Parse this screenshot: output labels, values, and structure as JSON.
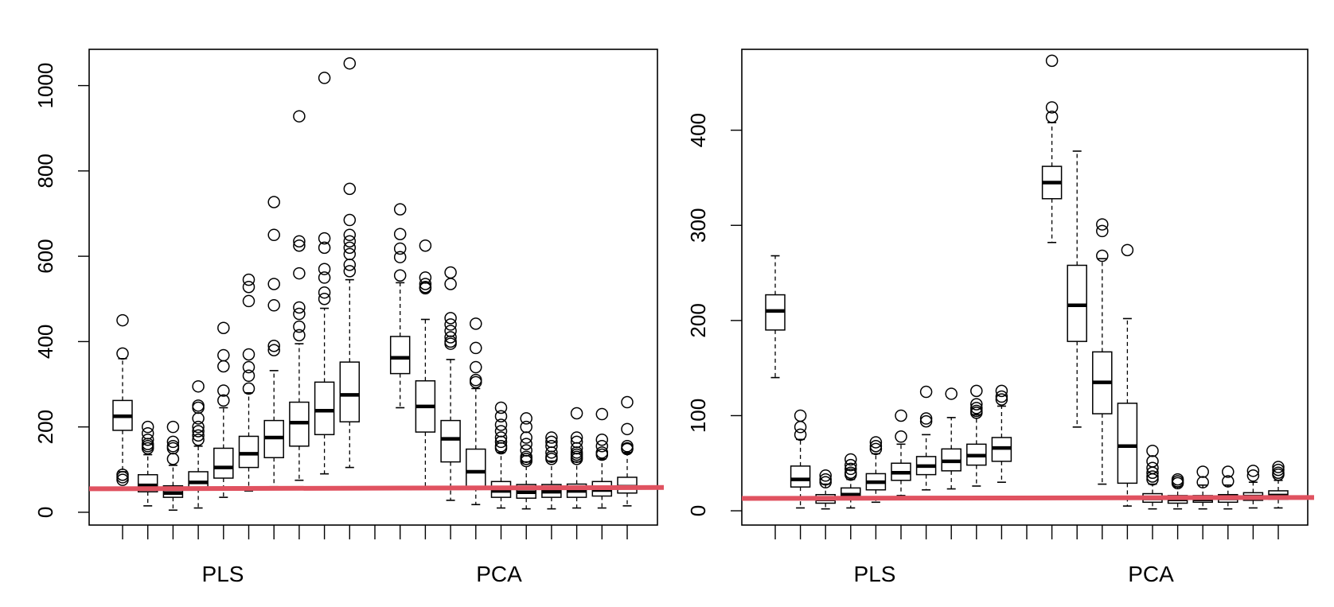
{
  "chart_data": [
    {
      "type": "box",
      "title": "",
      "xlabel": "",
      "ylabel": "",
      "ylim": [
        -30,
        1085
      ],
      "yticks": [
        0,
        200,
        400,
        600,
        800,
        1000
      ],
      "group_labels": [
        "PLS",
        "PCA"
      ],
      "reference_line": {
        "y_start": 55,
        "y_end": 58,
        "color": "#e05260"
      },
      "boxes": [
        {
          "group": "PLS",
          "q1": 192,
          "median": 225,
          "q3": 262,
          "whisker_low": 95,
          "whisker_high": 360,
          "outliers": [
            450,
            372,
            88,
            82,
            76
          ]
        },
        {
          "group": "PLS",
          "q1": 48,
          "median": 63,
          "q3": 88,
          "whisker_low": 15,
          "whisker_high": 135,
          "outliers": [
            200,
            185,
            170,
            160,
            155,
            150
          ]
        },
        {
          "group": "PLS",
          "q1": 35,
          "median": 45,
          "q3": 62,
          "whisker_low": 5,
          "whisker_high": 110,
          "outliers": [
            200,
            165,
            155,
            150,
            125
          ]
        },
        {
          "group": "PLS",
          "q1": 55,
          "median": 70,
          "q3": 95,
          "whisker_low": 10,
          "whisker_high": 155,
          "outliers": [
            295,
            250,
            245,
            220,
            200,
            190,
            180,
            170
          ]
        },
        {
          "group": "PLS",
          "q1": 80,
          "median": 105,
          "q3": 150,
          "whisker_low": 35,
          "whisker_high": 245,
          "outliers": [
            432,
            368,
            342,
            285,
            262
          ]
        },
        {
          "group": "PLS",
          "q1": 105,
          "median": 137,
          "q3": 178,
          "whisker_low": 50,
          "whisker_high": 280,
          "outliers": [
            545,
            528,
            495,
            370,
            340,
            320,
            290
          ]
        },
        {
          "group": "PLS",
          "q1": 128,
          "median": 175,
          "q3": 215,
          "whisker_low": 60,
          "whisker_high": 332,
          "outliers": [
            727,
            650,
            535,
            485,
            390,
            380
          ]
        },
        {
          "group": "PLS",
          "q1": 155,
          "median": 210,
          "q3": 258,
          "whisker_low": 75,
          "whisker_high": 395,
          "outliers": [
            928,
            635,
            625,
            560,
            480,
            465,
            435,
            415
          ]
        },
        {
          "group": "PLS",
          "q1": 182,
          "median": 238,
          "q3": 305,
          "whisker_low": 90,
          "whisker_high": 478,
          "outliers": [
            1018,
            642,
            620,
            570,
            550,
            515,
            500
          ]
        },
        {
          "group": "PLS",
          "q1": 212,
          "median": 275,
          "q3": 352,
          "whisker_low": 105,
          "whisker_high": 545,
          "outliers": [
            1052,
            758,
            685,
            650,
            635,
            620,
            605,
            580,
            565
          ]
        },
        {
          "group": "PCA",
          "q1": 325,
          "median": 362,
          "q3": 412,
          "whisker_low": 245,
          "whisker_high": 538,
          "outliers": [
            710,
            652,
            618,
            598,
            555
          ]
        },
        {
          "group": "PCA",
          "q1": 188,
          "median": 248,
          "q3": 308,
          "whisker_low": 55,
          "whisker_high": 452,
          "outliers": [
            625,
            550,
            535,
            528,
            525
          ]
        },
        {
          "group": "PCA",
          "q1": 118,
          "median": 172,
          "q3": 215,
          "whisker_low": 28,
          "whisker_high": 358,
          "outliers": [
            562,
            535,
            455,
            440,
            425,
            410,
            400,
            395
          ]
        },
        {
          "group": "PCA",
          "q1": 58,
          "median": 95,
          "q3": 148,
          "whisker_low": 18,
          "whisker_high": 290,
          "outliers": [
            442,
            385,
            340,
            310,
            305
          ]
        },
        {
          "group": "PCA",
          "q1": 35,
          "median": 50,
          "q3": 72,
          "whisker_low": 10,
          "whisker_high": 140,
          "outliers": [
            245,
            225,
            205,
            190,
            175,
            165,
            155,
            150
          ]
        },
        {
          "group": "PCA",
          "q1": 33,
          "median": 47,
          "q3": 65,
          "whisker_low": 8,
          "whisker_high": 118,
          "outliers": [
            220,
            200,
            175,
            160,
            145,
            130,
            125,
            120
          ]
        },
        {
          "group": "PCA",
          "q1": 35,
          "median": 48,
          "q3": 65,
          "whisker_low": 8,
          "whisker_high": 120,
          "outliers": [
            175,
            165,
            155,
            140,
            130,
            125
          ]
        },
        {
          "group": "PCA",
          "q1": 35,
          "median": 50,
          "q3": 66,
          "whisker_low": 10,
          "whisker_high": 118,
          "outliers": [
            232,
            175,
            165,
            150,
            140,
            135,
            130,
            125
          ]
        },
        {
          "group": "PCA",
          "q1": 38,
          "median": 52,
          "q3": 72,
          "whisker_low": 10,
          "whisker_high": 125,
          "outliers": [
            230,
            170,
            155,
            140,
            135
          ]
        },
        {
          "group": "PCA",
          "q1": 45,
          "median": 60,
          "q3": 82,
          "whisker_low": 15,
          "whisker_high": 140,
          "outliers": [
            258,
            195,
            155,
            150,
            148
          ]
        }
      ]
    },
    {
      "type": "box",
      "title": "",
      "xlabel": "",
      "ylabel": "",
      "ylim": [
        -15,
        485
      ],
      "yticks": [
        0,
        100,
        200,
        300,
        400
      ],
      "group_labels": [
        "PLS",
        "PCA"
      ],
      "reference_line": {
        "y_start": 13,
        "y_end": 14,
        "color": "#e05260"
      },
      "boxes": [
        {
          "group": "PLS",
          "q1": 190,
          "median": 210,
          "q3": 227,
          "whisker_low": 140,
          "whisker_high": 268,
          "outliers": []
        },
        {
          "group": "PLS",
          "q1": 25,
          "median": 33,
          "q3": 47,
          "whisker_low": 3,
          "whisker_high": 75,
          "outliers": [
            100,
            88,
            80
          ]
        },
        {
          "group": "PLS",
          "q1": 8,
          "median": 12,
          "q3": 17,
          "whisker_low": 2,
          "whisker_high": 28,
          "outliers": [
            37,
            33,
            30
          ]
        },
        {
          "group": "PLS",
          "q1": 13,
          "median": 17,
          "q3": 24,
          "whisker_low": 3,
          "whisker_high": 33,
          "outliers": [
            54,
            48,
            44,
            40,
            38
          ]
        },
        {
          "group": "PLS",
          "q1": 22,
          "median": 30,
          "q3": 39,
          "whisker_low": 9,
          "whisker_high": 60,
          "outliers": [
            72,
            68,
            65
          ]
        },
        {
          "group": "PLS",
          "q1": 32,
          "median": 40,
          "q3": 50,
          "whisker_low": 16,
          "whisker_high": 70,
          "outliers": [
            100,
            78
          ]
        },
        {
          "group": "PLS",
          "q1": 38,
          "median": 47,
          "q3": 57,
          "whisker_low": 22,
          "whisker_high": 80,
          "outliers": [
            125,
            97,
            94
          ]
        },
        {
          "group": "PLS",
          "q1": 42,
          "median": 52,
          "q3": 65,
          "whisker_low": 23,
          "whisker_high": 98,
          "outliers": [
            123
          ]
        },
        {
          "group": "PLS",
          "q1": 48,
          "median": 58,
          "q3": 70,
          "whisker_low": 26,
          "whisker_high": 101,
          "outliers": [
            126,
            112,
            108,
            105,
            103
          ]
        },
        {
          "group": "PLS",
          "q1": 52,
          "median": 66,
          "q3": 77,
          "whisker_low": 30,
          "whisker_high": 110,
          "outliers": [
            126,
            120,
            117
          ]
        },
        {
          "group": "PCA",
          "q1": 328,
          "median": 345,
          "q3": 362,
          "whisker_low": 282,
          "whisker_high": 408,
          "outliers": [
            473,
            424,
            414
          ]
        },
        {
          "group": "PCA",
          "q1": 178,
          "median": 216,
          "q3": 258,
          "whisker_low": 88,
          "whisker_high": 378,
          "outliers": []
        },
        {
          "group": "PCA",
          "q1": 102,
          "median": 135,
          "q3": 167,
          "whisker_low": 28,
          "whisker_high": 265,
          "outliers": [
            301,
            294,
            268
          ]
        },
        {
          "group": "PCA",
          "q1": 29,
          "median": 68,
          "q3": 113,
          "whisker_low": 5,
          "whisker_high": 202,
          "outliers": [
            274
          ]
        },
        {
          "group": "PCA",
          "q1": 9,
          "median": 13,
          "q3": 18,
          "whisker_low": 2,
          "whisker_high": 28,
          "outliers": [
            63,
            52,
            45,
            40,
            36,
            33
          ]
        },
        {
          "group": "PCA",
          "q1": 8,
          "median": 12,
          "q3": 16,
          "whisker_low": 2,
          "whisker_high": 25,
          "outliers": [
            33,
            31,
            29
          ]
        },
        {
          "group": "PCA",
          "q1": 9,
          "median": 12,
          "q3": 16,
          "whisker_low": 2,
          "whisker_high": 27,
          "outliers": [
            41,
            30
          ]
        },
        {
          "group": "PCA",
          "q1": 9,
          "median": 13,
          "q3": 17,
          "whisker_low": 2,
          "whisker_high": 27,
          "outliers": [
            41,
            31
          ]
        },
        {
          "group": "PCA",
          "q1": 11,
          "median": 15,
          "q3": 19,
          "whisker_low": 3,
          "whisker_high": 30,
          "outliers": [
            42,
            37
          ]
        },
        {
          "group": "PCA",
          "q1": 12,
          "median": 16,
          "q3": 21,
          "whisker_low": 3,
          "whisker_high": 32,
          "outliers": [
            46,
            43,
            40,
            38
          ]
        }
      ]
    }
  ]
}
